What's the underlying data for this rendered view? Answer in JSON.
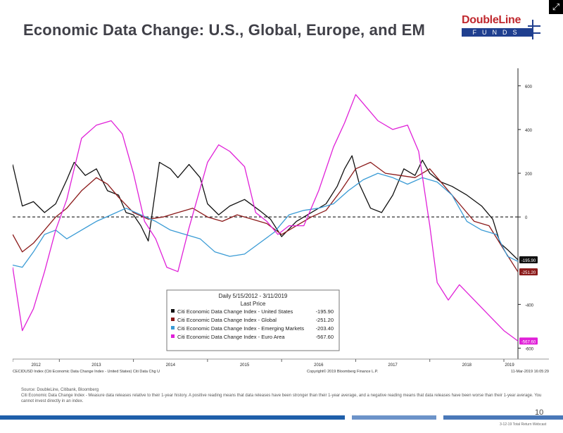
{
  "header": {
    "title": "Economic Data Change: U.S., Global, Europe, and EM",
    "logo_word": "DoubleLine",
    "logo_bar": "FUNDS"
  },
  "chart_data": {
    "type": "line",
    "bloomberg_caption": "CECIDUSD Index (Citi Economic Data Change Index - United States) Citi Data Chg U",
    "copyright": "Copyright© 2019 Bloomberg Finance L.P.",
    "timestamp": "11-Mar-2019 16:05:29",
    "x_ticks": [
      "2012",
      "2013",
      "2014",
      "2015",
      "2016",
      "2017",
      "2018",
      "2019"
    ],
    "y_ticks": [
      600,
      400,
      200,
      0,
      -400,
      -600
    ],
    "ylim": [
      -650,
      680
    ],
    "xlim": [
      2012.37,
      2019.19
    ],
    "reference_line": 0,
    "legend": {
      "title": "Daily 5/15/2012 - 3/11/2019",
      "subtitle": "Last Price",
      "placement": "bottom-center"
    },
    "series": [
      {
        "name": "Citi Economic Data Change Index - United States",
        "last": "-195.90",
        "color": "#111111",
        "x": [
          2012.37,
          2012.5,
          2012.65,
          2012.8,
          2012.95,
          2013.1,
          2013.2,
          2013.35,
          2013.5,
          2013.65,
          2013.8,
          2013.9,
          2014.0,
          2014.1,
          2014.2,
          2014.35,
          2014.5,
          2014.6,
          2014.75,
          2014.9,
          2015.0,
          2015.15,
          2015.3,
          2015.5,
          2015.7,
          2015.85,
          2016.0,
          2016.2,
          2016.4,
          2016.6,
          2016.75,
          2016.85,
          2016.95,
          2017.05,
          2017.2,
          2017.35,
          2017.5,
          2017.65,
          2017.8,
          2017.9,
          2018.0,
          2018.15,
          2018.3,
          2018.5,
          2018.7,
          2018.85,
          2018.95,
          2019.05,
          2019.19
        ],
        "y": [
          240,
          50,
          70,
          20,
          60,
          170,
          250,
          190,
          220,
          120,
          100,
          20,
          10,
          -40,
          -110,
          250,
          220,
          180,
          240,
          180,
          60,
          10,
          50,
          80,
          30,
          -10,
          -90,
          -20,
          20,
          60,
          140,
          220,
          280,
          150,
          40,
          20,
          100,
          220,
          190,
          260,
          200,
          160,
          140,
          100,
          50,
          -10,
          -120,
          -150,
          -195.9
        ]
      },
      {
        "name": "Citi Economic Data Change Index - Global",
        "last": "-251.20",
        "color": "#8b1a1a",
        "x": [
          2012.37,
          2012.5,
          2012.65,
          2012.8,
          2012.95,
          2013.1,
          2013.3,
          2013.5,
          2013.65,
          2013.8,
          2014.0,
          2014.2,
          2014.4,
          2014.6,
          2014.8,
          2015.0,
          2015.2,
          2015.4,
          2015.6,
          2015.8,
          2016.0,
          2016.2,
          2016.4,
          2016.6,
          2016.8,
          2017.0,
          2017.2,
          2017.4,
          2017.6,
          2017.8,
          2018.0,
          2018.2,
          2018.4,
          2018.6,
          2018.8,
          2019.0,
          2019.19
        ],
        "y": [
          -80,
          -160,
          -120,
          -60,
          0,
          40,
          120,
          180,
          150,
          90,
          20,
          -10,
          0,
          20,
          40,
          0,
          -20,
          10,
          -10,
          -30,
          -80,
          -40,
          0,
          30,
          120,
          220,
          250,
          200,
          190,
          180,
          220,
          140,
          60,
          -20,
          -40,
          -150,
          -251.2
        ]
      },
      {
        "name": "Citi Economic Data Change Index - Emerging Markets",
        "last": "-203.40",
        "color": "#3a9bd5",
        "x": [
          2012.37,
          2012.5,
          2012.65,
          2012.8,
          2012.95,
          2013.1,
          2013.3,
          2013.5,
          2013.7,
          2013.9,
          2014.1,
          2014.3,
          2014.5,
          2014.7,
          2014.9,
          2015.1,
          2015.3,
          2015.5,
          2015.7,
          2015.9,
          2016.1,
          2016.3,
          2016.5,
          2016.7,
          2016.9,
          2017.1,
          2017.3,
          2017.5,
          2017.7,
          2017.9,
          2018.1,
          2018.3,
          2018.5,
          2018.7,
          2018.9,
          2019.05,
          2019.19
        ],
        "y": [
          -220,
          -230,
          -160,
          -80,
          -60,
          -100,
          -60,
          -20,
          10,
          40,
          10,
          -20,
          -60,
          -80,
          -100,
          -160,
          -180,
          -170,
          -120,
          -70,
          10,
          30,
          40,
          60,
          120,
          170,
          200,
          180,
          150,
          180,
          160,
          100,
          -20,
          -60,
          -80,
          -180,
          -203.4
        ]
      },
      {
        "name": "Citi Economic Data Change Index - Euro Area",
        "last": "-567.60",
        "color": "#e020d8",
        "x": [
          2012.37,
          2012.5,
          2012.65,
          2012.8,
          2012.95,
          2013.1,
          2013.3,
          2013.5,
          2013.7,
          2013.85,
          2014.0,
          2014.15,
          2014.3,
          2014.45,
          2014.6,
          2014.75,
          2014.9,
          2015.0,
          2015.15,
          2015.3,
          2015.5,
          2015.65,
          2015.8,
          2015.95,
          2016.1,
          2016.3,
          2016.5,
          2016.7,
          2016.85,
          2017.0,
          2017.15,
          2017.3,
          2017.5,
          2017.7,
          2017.85,
          2018.0,
          2018.1,
          2018.25,
          2018.4,
          2018.6,
          2018.8,
          2019.0,
          2019.19
        ],
        "y": [
          -230,
          -520,
          -420,
          -250,
          -60,
          80,
          360,
          420,
          440,
          380,
          200,
          -20,
          -100,
          -230,
          -250,
          -50,
          130,
          250,
          330,
          300,
          230,
          20,
          -20,
          -80,
          -40,
          -40,
          120,
          320,
          430,
          560,
          500,
          440,
          400,
          420,
          300,
          -40,
          -300,
          -380,
          -310,
          -380,
          -450,
          -520,
          -567.6
        ]
      }
    ]
  },
  "footer": {
    "source_line1": "Source: DoubleLine, Citibank, Bloomberg",
    "source_line2": "Citi Economic Data Change Index - Measure data releases relative to their 1-year history. A positive reading means that data releases have been stronger than their 1-year average, and a negative reading means that data releases have been worse than their 1-year average. You cannot invest directly in an index.",
    "page_number": "10",
    "footnote": "3-12-19 Total Return Webcast"
  }
}
